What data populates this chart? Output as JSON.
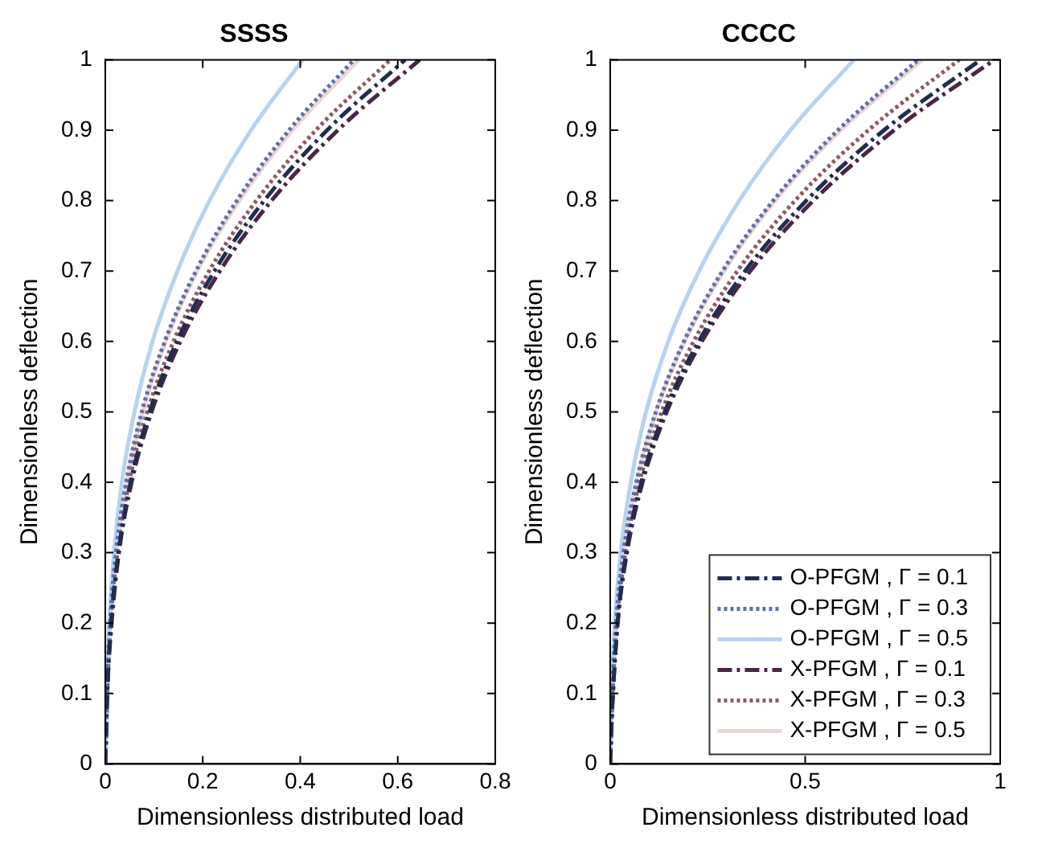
{
  "chart_data": [
    {
      "type": "line",
      "title": "SSSS",
      "xlabel": "Dimensionless distributed load",
      "ylabel": "Dimensionless deflection",
      "xlim": [
        0,
        0.8
      ],
      "xticks": [
        0,
        0.2,
        0.4,
        0.6,
        0.8
      ],
      "ylim": [
        0,
        1
      ],
      "yticks": [
        0,
        0.1,
        0.2,
        0.3,
        0.4,
        0.5,
        0.6,
        0.7,
        0.8,
        0.9,
        1
      ],
      "grid": false,
      "legend": false,
      "marker": "none",
      "series": [
        {
          "color": "#1f2d50",
          "line_style": "dashed",
          "x": [
            0,
            0.002,
            0.004,
            0.012,
            0.027,
            0.052,
            0.091,
            0.147,
            0.224,
            0.326,
            0.455,
            0.615
          ],
          "values": [
            0,
            0.05,
            0.1,
            0.2,
            0.3,
            0.4,
            0.5,
            0.6,
            0.7,
            0.8,
            0.9,
            1
          ]
        },
        {
          "color": "#5b6fa8",
          "line_style": "dotted",
          "x": [
            0,
            0.002,
            0.004,
            0.01,
            0.022,
            0.043,
            0.075,
            0.122,
            0.186,
            0.27,
            0.377,
            0.51
          ],
          "values": [
            0,
            0.05,
            0.1,
            0.2,
            0.3,
            0.4,
            0.5,
            0.6,
            0.7,
            0.8,
            0.9,
            1
          ]
        },
        {
          "color": "#b6d3f2",
          "line_style": "solid",
          "x": [
            0,
            0.001,
            0.003,
            0.008,
            0.018,
            0.034,
            0.06,
            0.097,
            0.148,
            0.214,
            0.299,
            0.405
          ],
          "values": [
            0,
            0.05,
            0.1,
            0.2,
            0.3,
            0.4,
            0.5,
            0.6,
            0.7,
            0.8,
            0.9,
            1
          ]
        },
        {
          "color": "#4a2545",
          "line_style": "dashed",
          "x": [
            0,
            0.002,
            0.004,
            0.013,
            0.028,
            0.054,
            0.095,
            0.154,
            0.235,
            0.341,
            0.477,
            0.645
          ],
          "values": [
            0,
            0.05,
            0.1,
            0.2,
            0.3,
            0.4,
            0.5,
            0.6,
            0.7,
            0.8,
            0.9,
            1
          ]
        },
        {
          "color": "#8c5a62",
          "line_style": "dotted",
          "x": [
            0,
            0.002,
            0.004,
            0.011,
            0.025,
            0.049,
            0.086,
            0.14,
            0.213,
            0.31,
            0.432,
            0.585
          ],
          "values": [
            0,
            0.05,
            0.1,
            0.2,
            0.3,
            0.4,
            0.5,
            0.6,
            0.7,
            0.8,
            0.9,
            1
          ]
        },
        {
          "color": "#ecd5d5",
          "line_style": "solid",
          "x": [
            0,
            0.002,
            0.004,
            0.01,
            0.023,
            0.044,
            0.077,
            0.124,
            0.189,
            0.275,
            0.384,
            0.52
          ],
          "values": [
            0,
            0.05,
            0.1,
            0.2,
            0.3,
            0.4,
            0.5,
            0.6,
            0.7,
            0.8,
            0.9,
            1
          ]
        }
      ]
    },
    {
      "type": "line",
      "title": "CCCC",
      "xlabel": "Dimensionless distributed load",
      "ylabel": "Dimensionless deflection",
      "xlim": [
        0,
        1
      ],
      "xticks": [
        0,
        0.5,
        1
      ],
      "ylim": [
        0,
        1
      ],
      "yticks": [
        0,
        0.1,
        0.2,
        0.3,
        0.4,
        0.5,
        0.6,
        0.7,
        0.8,
        0.9,
        1
      ],
      "grid": false,
      "legend": "bottom right",
      "marker": "none",
      "series": [
        {
          "name": "O-PFGM , Γ = 0.1",
          "color": "#1f2d50",
          "line_style": "dashed",
          "x": [
            0,
            0.003,
            0.007,
            0.019,
            0.041,
            0.08,
            0.14,
            0.227,
            0.346,
            0.503,
            0.702,
            0.95
          ],
          "values": [
            0,
            0.05,
            0.1,
            0.2,
            0.3,
            0.4,
            0.5,
            0.6,
            0.7,
            0.8,
            0.9,
            1
          ]
        },
        {
          "name": "O-PFGM , Γ = 0.3",
          "color": "#5b6fa8",
          "line_style": "dotted",
          "x": [
            0,
            0.002,
            0.005,
            0.015,
            0.034,
            0.067,
            0.117,
            0.189,
            0.288,
            0.418,
            0.584,
            0.79
          ],
          "values": [
            0,
            0.05,
            0.1,
            0.2,
            0.3,
            0.4,
            0.5,
            0.6,
            0.7,
            0.8,
            0.9,
            1
          ]
        },
        {
          "name": "O-PFGM , Γ = 0.5",
          "color": "#b6d3f2",
          "line_style": "solid",
          "x": [
            0,
            0.002,
            0.004,
            0.012,
            0.027,
            0.053,
            0.092,
            0.149,
            0.228,
            0.331,
            0.462,
            0.625
          ],
          "values": [
            0,
            0.05,
            0.1,
            0.2,
            0.3,
            0.4,
            0.5,
            0.6,
            0.7,
            0.8,
            0.9,
            1
          ]
        },
        {
          "name": "X-PFGM , Γ = 0.1",
          "color": "#4a2545",
          "line_style": "dashed",
          "x": [
            0,
            0.003,
            0.007,
            0.019,
            0.043,
            0.083,
            0.145,
            0.235,
            0.359,
            0.521,
            0.728,
            0.985
          ],
          "values": [
            0,
            0.05,
            0.1,
            0.2,
            0.3,
            0.4,
            0.5,
            0.6,
            0.7,
            0.8,
            0.9,
            1
          ]
        },
        {
          "name": "X-PFGM , Γ = 0.3",
          "color": "#8c5a62",
          "line_style": "dotted",
          "x": [
            0,
            0.003,
            0.006,
            0.017,
            0.039,
            0.075,
            0.132,
            0.214,
            0.326,
            0.474,
            0.662,
            0.895
          ],
          "values": [
            0,
            0.05,
            0.1,
            0.2,
            0.3,
            0.4,
            0.5,
            0.6,
            0.7,
            0.8,
            0.9,
            1
          ]
        },
        {
          "name": "X-PFGM , Γ = 0.5",
          "color": "#ecd5d5",
          "line_style": "solid",
          "x": [
            0,
            0.002,
            0.006,
            0.016,
            0.035,
            0.067,
            0.118,
            0.191,
            0.292,
            0.423,
            0.591,
            0.8
          ],
          "values": [
            0,
            0.05,
            0.1,
            0.2,
            0.3,
            0.4,
            0.5,
            0.6,
            0.7,
            0.8,
            0.9,
            1
          ]
        }
      ]
    }
  ]
}
